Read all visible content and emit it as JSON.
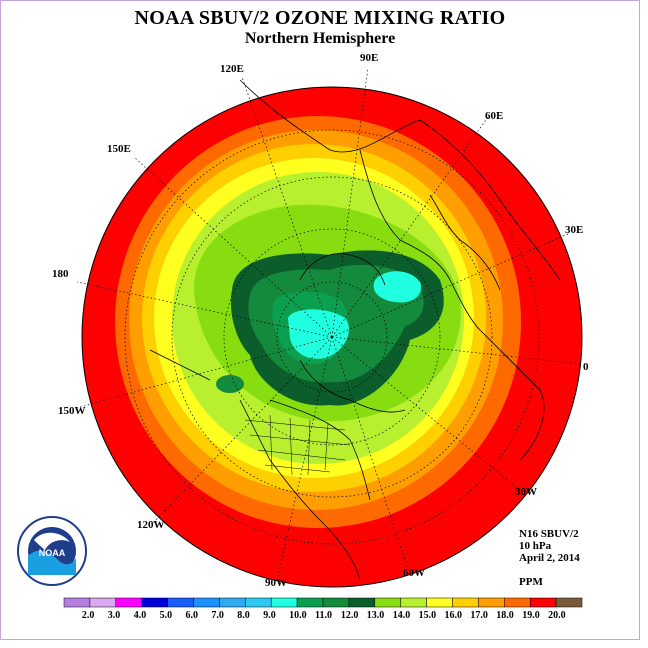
{
  "title": "NOAA SBUV/2 OZONE MIXING RATIO",
  "subtitle": "Northern Hemisphere",
  "longitude_labels": [
    "90E",
    "60E",
    "30E",
    "0",
    "30W",
    "60W",
    "90W",
    "120W",
    "150W",
    "180",
    "150E",
    "120E"
  ],
  "info": {
    "instrument": "N16 SBUV/2",
    "level": "10 hPa",
    "date": "April 2, 2014",
    "units": "PPM"
  },
  "logo": {
    "text": "NOAA",
    "ring_text": "NATIONAL OCEANIC AND ATMOSPHERIC ADMINISTRATION · U.S. DEPARTMENT OF COMMERCE"
  },
  "colorbar": {
    "labels": [
      "2.0",
      "3.0",
      "4.0",
      "5.0",
      "6.0",
      "7.0",
      "8.0",
      "9.0",
      "10.0",
      "11.0",
      "12.0",
      "13.0",
      "14.0",
      "15.0",
      "16.0",
      "17.0",
      "18.0",
      "19.0",
      "20.0"
    ],
    "colors": [
      "#b57fe0",
      "#d8a9f0",
      "#ff00ff",
      "#0000dd",
      "#1a5cff",
      "#1e90ff",
      "#2eaaf0",
      "#2cc8f0",
      "#20ffe0",
      "#0aa050",
      "#138a3c",
      "#0b5e2c",
      "#88dd10",
      "#b8f030",
      "#ffff20",
      "#ffd000",
      "#ff9e00",
      "#ff6a00",
      "#ff0000",
      "#7a5a3a"
    ]
  },
  "chart_data": {
    "type": "heatmap",
    "title": "NOAA SBUV/2 OZONE MIXING RATIO",
    "subtitle": "Northern Hemisphere",
    "projection": "north-polar-stereographic",
    "units": "PPM",
    "level": "10 hPa",
    "date": "April 2, 2014",
    "contour_levels": [
      2.0,
      3.0,
      4.0,
      5.0,
      6.0,
      7.0,
      8.0,
      9.0,
      10.0,
      11.0,
      12.0,
      13.0,
      14.0,
      15.0,
      16.0,
      17.0,
      18.0,
      19.0,
      20.0
    ],
    "regions": [
      {
        "area": "outer edge (near equator)",
        "value_range": [
          19.0,
          20.0
        ]
      },
      {
        "area": "outer ring",
        "value_range": [
          18.0,
          19.0
        ]
      },
      {
        "area": "mid-latitudes",
        "value_range": [
          14.0,
          17.0
        ]
      },
      {
        "area": "polar ring",
        "value_range": [
          12.0,
          14.0
        ]
      },
      {
        "area": "polar vortex core",
        "value_range": [
          9.0,
          12.0
        ]
      }
    ]
  }
}
